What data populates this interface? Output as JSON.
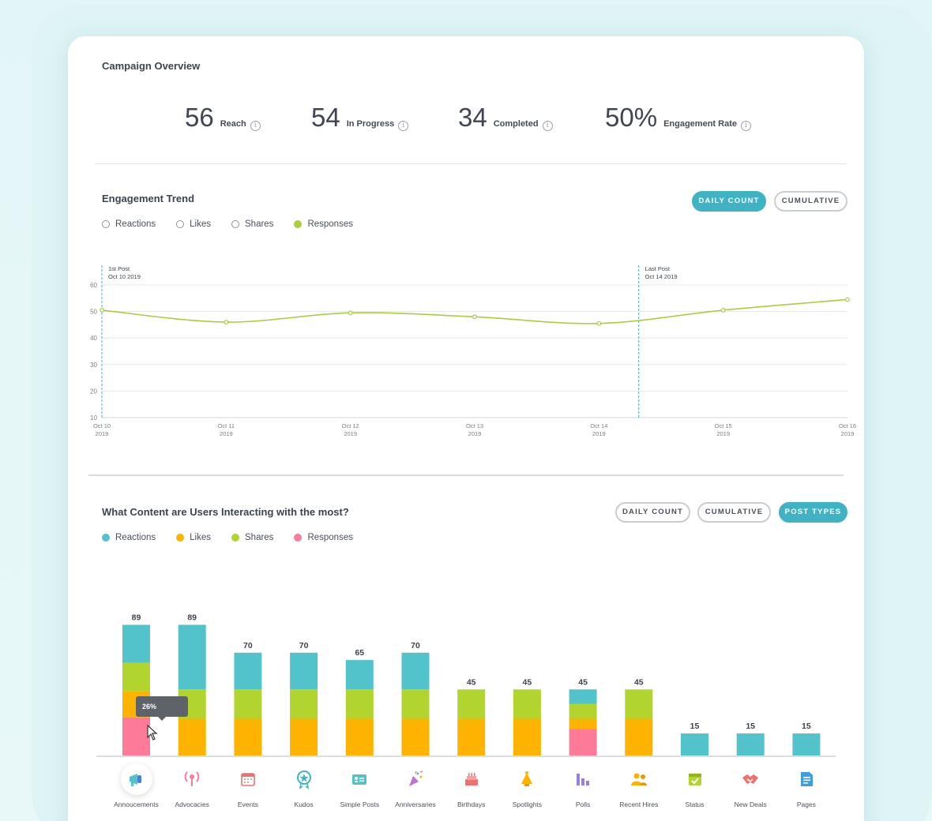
{
  "overview": {
    "title": "Campaign Overview",
    "kpis": [
      {
        "value": "56",
        "label": "Reach"
      },
      {
        "value": "54",
        "label": "In Progress"
      },
      {
        "value": "34",
        "label": "Completed"
      },
      {
        "value": "50%",
        "label": "Engagement Rate"
      }
    ]
  },
  "trend": {
    "title": "Engagement Trend",
    "buttons": {
      "daily": "DAILY COUNT",
      "cumulative": "CUMULATIVE"
    },
    "legend": [
      {
        "label": "Reactions",
        "selected": false
      },
      {
        "label": "Likes",
        "selected": false
      },
      {
        "label": "Shares",
        "selected": false
      },
      {
        "label": "Responses",
        "selected": true
      }
    ],
    "markers": [
      {
        "title": "1st Post",
        "date": "Oct 10 2019"
      },
      {
        "title": "Last Post",
        "date": "Oct 14 2019"
      }
    ]
  },
  "content": {
    "title": "What Content are Users Interacting with the most?",
    "buttons": {
      "daily": "DAILY COUNT",
      "cumulative": "CUMULATIVE",
      "post_types": "POST TYPES"
    },
    "legend": [
      "Reactions",
      "Likes",
      "Shares",
      "Responses"
    ],
    "tooltip": "26%"
  },
  "colors": {
    "reactions": "#53c3cb",
    "likes": "#fdb300",
    "shares": "#b2d42f",
    "responses": "#fd7b99",
    "accent": "#3fb3c3",
    "trend_line": "#a9cf3b"
  },
  "chart_data": [
    {
      "type": "line",
      "title": "Engagement Trend",
      "x": [
        "Oct 10 2019",
        "Oct 11 2019",
        "Oct 12 2019",
        "Oct 13 2019",
        "Oct 14 2019",
        "Oct 15 2019",
        "Oct 16 2019"
      ],
      "series": [
        {
          "name": "Responses",
          "values": [
            50.5,
            46,
            49.5,
            48,
            45.5,
            50.5,
            54.5
          ]
        }
      ],
      "ylim": [
        10,
        60
      ],
      "yticks": [
        10,
        20,
        30,
        40,
        50,
        60
      ],
      "grid": true
    },
    {
      "type": "bar",
      "stacked": true,
      "title": "What Content are Users Interacting with the most?",
      "categories": [
        "Annoucements",
        "Advocacies",
        "Events",
        "Kudos",
        "Simple Posts",
        "Anniversaries",
        "Birthdays",
        "Spotlights",
        "Polls",
        "Recent Hires",
        "Status",
        "New Deals",
        "Pages"
      ],
      "totals": [
        89,
        89,
        70,
        70,
        65,
        70,
        45,
        45,
        45,
        45,
        15,
        15,
        15
      ],
      "series": [
        {
          "name": "Responses",
          "values": [
            26,
            0,
            0,
            0,
            0,
            0,
            0,
            0,
            18,
            0,
            0,
            0,
            0
          ]
        },
        {
          "name": "Likes",
          "values": [
            18,
            25,
            25,
            25,
            25,
            25,
            25,
            25,
            7,
            25,
            0,
            0,
            0
          ]
        },
        {
          "name": "Shares",
          "values": [
            19,
            20,
            20,
            20,
            20,
            20,
            20,
            20,
            10,
            20,
            0,
            0,
            0
          ]
        },
        {
          "name": "Reactions",
          "values": [
            26,
            44,
            25,
            25,
            20,
            25,
            0,
            0,
            10,
            0,
            15,
            15,
            15
          ]
        }
      ],
      "legend": "top-left"
    }
  ]
}
